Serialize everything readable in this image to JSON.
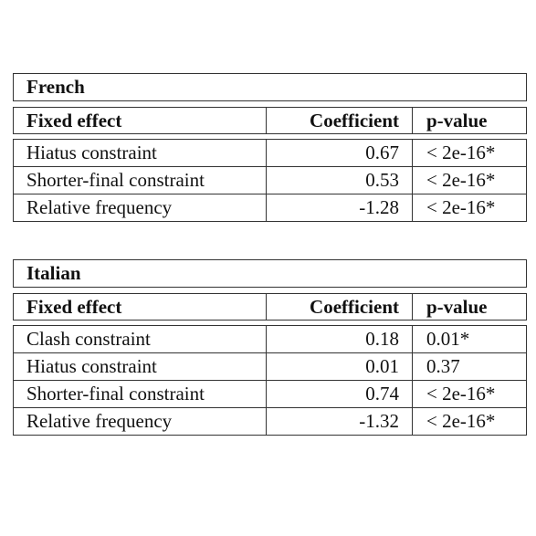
{
  "tables": [
    {
      "title": "French",
      "header": [
        "Fixed effect",
        "Coefficient",
        "p-value"
      ],
      "rows": [
        [
          "Hiatus constraint",
          "0.67",
          "< 2e-16*"
        ],
        [
          "Shorter-final constraint",
          "0.53",
          "< 2e-16*"
        ],
        [
          "Relative frequency",
          "-1.28",
          "< 2e-16*"
        ]
      ]
    },
    {
      "title": "Italian",
      "header": [
        "Fixed effect",
        "Coefficient",
        "p-value"
      ],
      "rows": [
        [
          "Clash constraint",
          "0.18",
          "0.01*"
        ],
        [
          "Hiatus constraint",
          "0.01",
          "0.37"
        ],
        [
          "Shorter-final constraint",
          "0.74",
          "< 2e-16*"
        ],
        [
          "Relative frequency",
          "-1.32",
          "< 2e-16*"
        ]
      ]
    }
  ]
}
